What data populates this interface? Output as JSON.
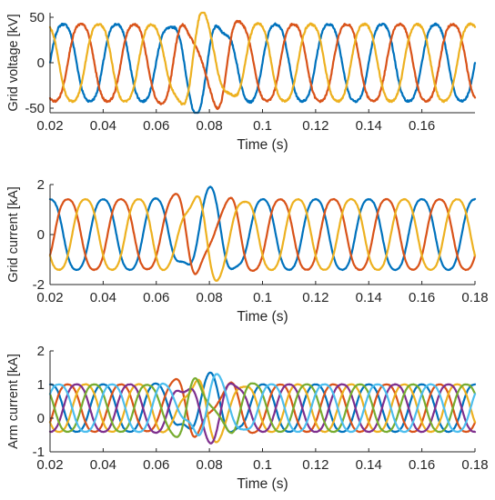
{
  "chart_data": [
    {
      "type": "line",
      "xlabel": "Time (s)",
      "ylabel": "Grid voltage [kV]",
      "xlim": [
        0.02,
        0.18
      ],
      "ylim": [
        -55,
        55
      ],
      "xticks": [
        0.02,
        0.04,
        0.06,
        0.08,
        0.1,
        0.12,
        0.14,
        0.16
      ],
      "xtick_labels": [
        "0.02",
        "0.04",
        "0.06",
        "0.08",
        "0.1",
        "0.12",
        "0.14",
        "0.16"
      ],
      "yticks": [
        -50,
        0,
        50
      ],
      "ytick_labels": [
        "-50",
        "0",
        "50"
      ],
      "grid": false,
      "legend": "none",
      "frequency_hz": 50,
      "series": [
        {
          "color": "#0072BD",
          "amplitude": 45,
          "phase_deg": 0
        },
        {
          "color": "#D95319",
          "amplitude": 45,
          "phase_deg": -120
        },
        {
          "color": "#EDB120",
          "amplitude": 45,
          "phase_deg": 120
        }
      ]
    },
    {
      "type": "line",
      "xlabel": "Time (s)",
      "ylabel": "Grid current [kA]",
      "xlim": [
        0.02,
        0.18
      ],
      "ylim": [
        -2,
        2
      ],
      "xticks": [
        0.02,
        0.04,
        0.06,
        0.08,
        0.1,
        0.12,
        0.14,
        0.16,
        0.18
      ],
      "xtick_labels": [
        "0.02",
        "0.04",
        "0.06",
        "0.08",
        "0.1",
        "0.12",
        "0.14",
        "0.16",
        "0.18"
      ],
      "yticks": [
        -2,
        0,
        2
      ],
      "ytick_labels": [
        "-2",
        "0",
        "2"
      ],
      "grid": false,
      "legend": "none",
      "frequency_hz": 50,
      "series": [
        {
          "color": "#0072BD",
          "amplitude": 1.5,
          "phase_deg": 90
        },
        {
          "color": "#D95319",
          "amplitude": 1.5,
          "phase_deg": -30
        },
        {
          "color": "#EDB120",
          "amplitude": 1.5,
          "phase_deg": 210
        }
      ]
    },
    {
      "type": "line",
      "xlabel": "Time (s)",
      "ylabel": "Arm current [kA]",
      "xlim": [
        0.02,
        0.18
      ],
      "ylim": [
        -1,
        2
      ],
      "xticks": [
        0.02,
        0.04,
        0.06,
        0.08,
        0.1,
        0.12,
        0.14,
        0.16,
        0.18
      ],
      "xtick_labels": [
        "0.02",
        "0.04",
        "0.06",
        "0.08",
        "0.1",
        "0.12",
        "0.14",
        "0.16",
        "0.18"
      ],
      "yticks": [
        -1,
        0,
        1,
        2
      ],
      "ytick_labels": [
        "-1",
        "0",
        "1",
        "2"
      ],
      "grid": false,
      "legend": "none",
      "frequency_hz": 50,
      "series": [
        {
          "color": "#0072BD",
          "offset": 0.3,
          "amplitude": 0.75,
          "phase_deg": 90
        },
        {
          "color": "#D95319",
          "offset": 0.3,
          "amplitude": 0.75,
          "phase_deg": -30
        },
        {
          "color": "#EDB120",
          "offset": 0.3,
          "amplitude": 0.75,
          "phase_deg": 210
        },
        {
          "color": "#7E2F8E",
          "offset": 0.3,
          "amplitude": 0.75,
          "phase_deg": 270
        },
        {
          "color": "#77AC30",
          "offset": 0.3,
          "amplitude": 0.75,
          "phase_deg": 150
        },
        {
          "color": "#4DBEEE",
          "offset": 0.3,
          "amplitude": 0.75,
          "phase_deg": 30
        }
      ]
    }
  ]
}
